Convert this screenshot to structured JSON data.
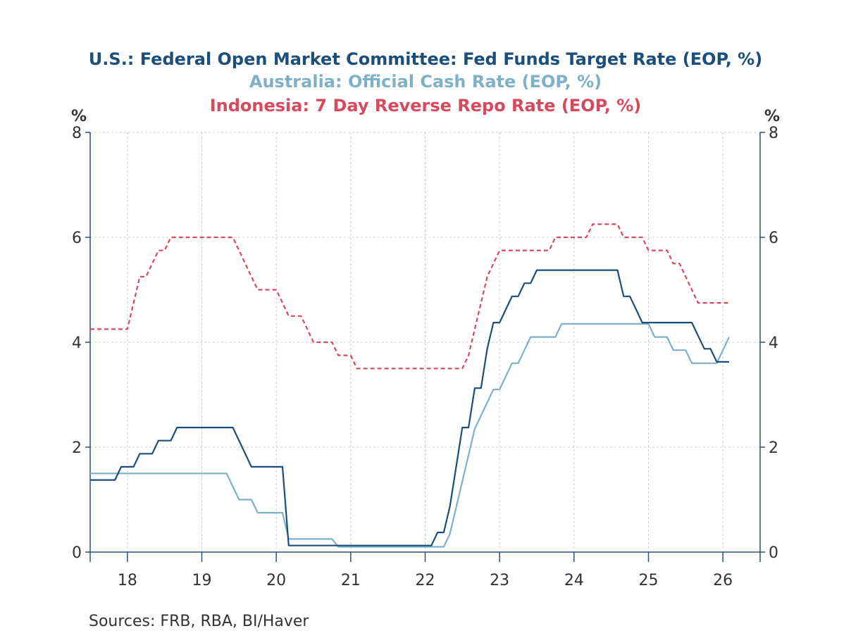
{
  "chart_data": {
    "type": "line",
    "title_lines": [
      {
        "text": "U.S.: Federal Open Market Committee: Fed Funds Target Rate (EOP, %)",
        "color": "#1b4f7a"
      },
      {
        "text": "Australia: Official Cash Rate (EOP, %)",
        "color": "#7eb0c7"
      },
      {
        "text": "Indonesia: 7 Day Reverse Repo Rate (EOP, %)",
        "color": "#d64a5e"
      }
    ],
    "y_unit_left": "%",
    "y_unit_right": "%",
    "ylim": [
      0,
      8
    ],
    "y_ticks": [
      0,
      2,
      4,
      6,
      8
    ],
    "y_tick_labels": [
      "0",
      "2",
      "4",
      "6",
      "8"
    ],
    "xlim": [
      2017.5,
      2026.5
    ],
    "x_tick_labels": [
      {
        "label": "18",
        "year": 2018
      },
      {
        "label": "19",
        "year": 2019
      },
      {
        "label": "20",
        "year": 2020
      },
      {
        "label": "21",
        "year": 2021
      },
      {
        "label": "22",
        "year": 2022
      },
      {
        "label": "23",
        "year": 2023
      },
      {
        "label": "24",
        "year": 2024
      },
      {
        "label": "25",
        "year": 2025
      },
      {
        "label": "26",
        "year": 2026
      }
    ],
    "grid": true,
    "series": [
      {
        "name": "U.S.: Federal Open Market Committee: Fed Funds Target Rate (EOP, %)",
        "color": "#1b4f7a",
        "dash": "solid",
        "points": [
          [
            "2017-07",
            1.375
          ],
          [
            "2017-08",
            1.375
          ],
          [
            "2017-09",
            1.375
          ],
          [
            "2017-10",
            1.375
          ],
          [
            "2017-11",
            1.375
          ],
          [
            "2017-12",
            1.625
          ],
          [
            "2018-01",
            1.625
          ],
          [
            "2018-02",
            1.625
          ],
          [
            "2018-03",
            1.875
          ],
          [
            "2018-04",
            1.875
          ],
          [
            "2018-05",
            1.875
          ],
          [
            "2018-06",
            2.125
          ],
          [
            "2018-07",
            2.125
          ],
          [
            "2018-08",
            2.125
          ],
          [
            "2018-09",
            2.375
          ],
          [
            "2018-10",
            2.375
          ],
          [
            "2019-06",
            2.375
          ],
          [
            "2019-07",
            2.125
          ],
          [
            "2019-08",
            1.875
          ],
          [
            "2019-09",
            1.625
          ],
          [
            "2019-10",
            1.625
          ],
          [
            "2020-02",
            1.625
          ],
          [
            "2020-03",
            0.125
          ],
          [
            "2021-12",
            0.125
          ],
          [
            "2022-01",
            0.125
          ],
          [
            "2022-02",
            0.125
          ],
          [
            "2022-03",
            0.375
          ],
          [
            "2022-04",
            0.375
          ],
          [
            "2022-05",
            0.875
          ],
          [
            "2022-06",
            1.625
          ],
          [
            "2022-07",
            2.375
          ],
          [
            "2022-08",
            2.375
          ],
          [
            "2022-09",
            3.125
          ],
          [
            "2022-10",
            3.125
          ],
          [
            "2022-11",
            3.875
          ],
          [
            "2022-12",
            4.375
          ],
          [
            "2023-01",
            4.375
          ],
          [
            "2023-02",
            4.625
          ],
          [
            "2023-03",
            4.875
          ],
          [
            "2023-04",
            4.875
          ],
          [
            "2023-05",
            5.125
          ],
          [
            "2023-06",
            5.125
          ],
          [
            "2023-07",
            5.375
          ],
          [
            "2024-08",
            5.375
          ],
          [
            "2024-09",
            4.875
          ],
          [
            "2024-10",
            4.875
          ],
          [
            "2024-11",
            4.625
          ],
          [
            "2024-12",
            4.375
          ],
          [
            "2025-08",
            4.375
          ],
          [
            "2025-09",
            4.125
          ],
          [
            "2025-10",
            3.875
          ],
          [
            "2025-11",
            3.875
          ],
          [
            "2025-12",
            3.625
          ],
          [
            "2026-02",
            3.625
          ]
        ]
      },
      {
        "name": "Australia: Official Cash Rate (EOP, %)",
        "color": "#7eb0c7",
        "dash": "solid",
        "points": [
          [
            "2017-07",
            1.5
          ],
          [
            "2019-05",
            1.5
          ],
          [
            "2019-06",
            1.25
          ],
          [
            "2019-07",
            1.0
          ],
          [
            "2019-08",
            1.0
          ],
          [
            "2019-09",
            1.0
          ],
          [
            "2019-10",
            0.75
          ],
          [
            "2020-02",
            0.75
          ],
          [
            "2020-03",
            0.25
          ],
          [
            "2020-10",
            0.25
          ],
          [
            "2020-11",
            0.1
          ],
          [
            "2022-04",
            0.1
          ],
          [
            "2022-05",
            0.35
          ],
          [
            "2022-06",
            0.85
          ],
          [
            "2022-07",
            1.35
          ],
          [
            "2022-08",
            1.85
          ],
          [
            "2022-09",
            2.35
          ],
          [
            "2022-10",
            2.6
          ],
          [
            "2022-11",
            2.85
          ],
          [
            "2022-12",
            3.1
          ],
          [
            "2023-01",
            3.1
          ],
          [
            "2023-02",
            3.35
          ],
          [
            "2023-03",
            3.6
          ],
          [
            "2023-04",
            3.6
          ],
          [
            "2023-05",
            3.85
          ],
          [
            "2023-06",
            4.1
          ],
          [
            "2023-10",
            4.1
          ],
          [
            "2023-11",
            4.35
          ],
          [
            "2025-01",
            4.35
          ],
          [
            "2025-02",
            4.1
          ],
          [
            "2025-04",
            4.1
          ],
          [
            "2025-05",
            3.85
          ],
          [
            "2025-07",
            3.85
          ],
          [
            "2025-08",
            3.6
          ],
          [
            "2025-12",
            3.6
          ],
          [
            "2026-01",
            3.85
          ],
          [
            "2026-02",
            4.1
          ]
        ]
      },
      {
        "name": "Indonesia: 7 Day Reverse Repo Rate (EOP, %)",
        "color": "#d64a5e",
        "dash": "dashed",
        "points": [
          [
            "2017-07",
            4.25
          ],
          [
            "2018-01",
            4.25
          ],
          [
            "2018-02",
            4.75
          ],
          [
            "2018-03",
            5.25
          ],
          [
            "2018-04",
            5.25
          ],
          [
            "2018-05",
            5.5
          ],
          [
            "2018-06",
            5.75
          ],
          [
            "2018-07",
            5.75
          ],
          [
            "2018-08",
            6.0
          ],
          [
            "2019-06",
            6.0
          ],
          [
            "2019-07",
            5.75
          ],
          [
            "2019-08",
            5.5
          ],
          [
            "2019-09",
            5.25
          ],
          [
            "2019-10",
            5.0
          ],
          [
            "2020-01",
            5.0
          ],
          [
            "2020-02",
            4.75
          ],
          [
            "2020-03",
            4.5
          ],
          [
            "2020-05",
            4.5
          ],
          [
            "2020-06",
            4.25
          ],
          [
            "2020-07",
            4.0
          ],
          [
            "2020-10",
            4.0
          ],
          [
            "2020-11",
            3.75
          ],
          [
            "2021-01",
            3.75
          ],
          [
            "2021-02",
            3.5
          ],
          [
            "2022-07",
            3.5
          ],
          [
            "2022-08",
            3.75
          ],
          [
            "2022-09",
            4.25
          ],
          [
            "2022-10",
            4.75
          ],
          [
            "2022-11",
            5.25
          ],
          [
            "2022-12",
            5.5
          ],
          [
            "2023-01",
            5.75
          ],
          [
            "2023-09",
            5.75
          ],
          [
            "2023-10",
            6.0
          ],
          [
            "2024-03",
            6.0
          ],
          [
            "2024-04",
            6.25
          ],
          [
            "2024-08",
            6.25
          ],
          [
            "2024-09",
            6.0
          ],
          [
            "2024-12",
            6.0
          ],
          [
            "2025-01",
            5.75
          ],
          [
            "2025-04",
            5.75
          ],
          [
            "2025-05",
            5.5
          ],
          [
            "2025-06",
            5.5
          ],
          [
            "2025-07",
            5.25
          ],
          [
            "2025-08",
            5.0
          ],
          [
            "2025-09",
            4.75
          ],
          [
            "2026-02",
            4.75
          ]
        ]
      }
    ]
  },
  "footer": {
    "sources": "Sources:  FRB, RBA, BI/Haver"
  },
  "colors": {
    "axis": "#2b4f7a",
    "grid": "#cccccc",
    "text": "#333333"
  }
}
